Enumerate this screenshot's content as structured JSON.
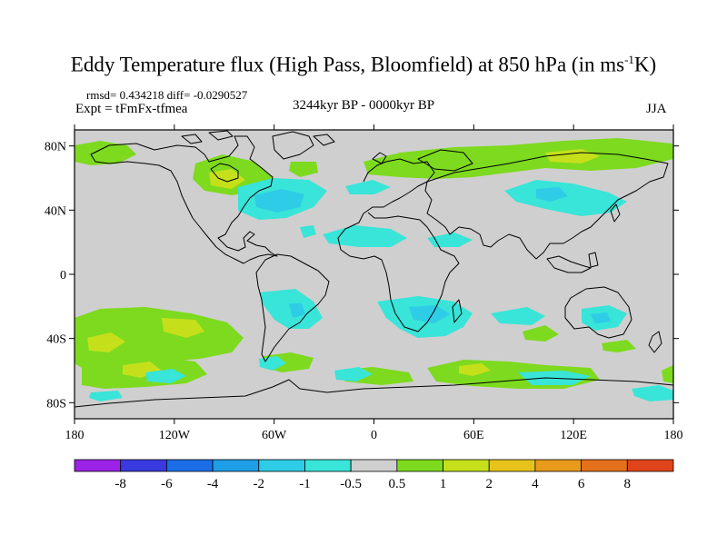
{
  "title": {
    "main": "Eddy Temperature flux (High Pass, Bloomfield) at 850 hPa (in ms",
    "sup": "-1",
    "end": "K)"
  },
  "stats": "rmsd= 0.434218 diff= -0.0290527",
  "expt": "Expt = tFmFx-tfmea",
  "period": "3244kyr BP - 0000kyr BP",
  "season": "JJA",
  "axes": {
    "lat_labels": [
      "80N",
      "40N",
      "0",
      "40S",
      "80S"
    ],
    "lat_values": [
      80,
      40,
      0,
      -40,
      -80
    ],
    "lon_labels": [
      "180",
      "120W",
      "60W",
      "0",
      "60E",
      "120E",
      "180"
    ],
    "lon_values": [
      -180,
      -120,
      -60,
      0,
      60,
      120,
      180
    ]
  },
  "colorbar": {
    "labels": [
      "-8",
      "-6",
      "-4",
      "-2",
      "-1",
      "-0.5",
      "0.5",
      "1",
      "2",
      "4",
      "6",
      "8"
    ],
    "colors": [
      "#9b22e6",
      "#3a3ae0",
      "#1c6ee8",
      "#1e9ee6",
      "#2ecce6",
      "#39e4d8",
      "#cfcfcf",
      "#7dda1e",
      "#c5e01b",
      "#e7c21b",
      "#e79a1b",
      "#e4701b",
      "#e0441a"
    ]
  },
  "palette": {
    "background": "#cfcfcf",
    "coast": "#000000"
  }
}
